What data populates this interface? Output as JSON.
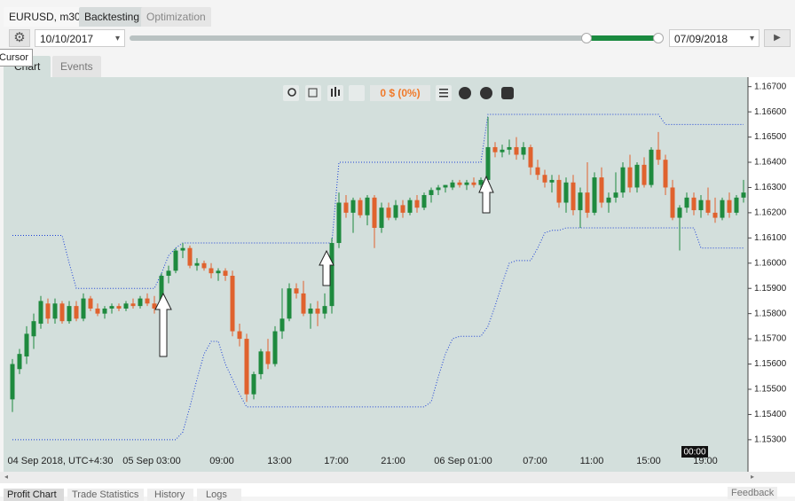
{
  "tabs": [
    "EURUSD, m30",
    "Backtesting",
    "Optimization"
  ],
  "tooltip": "Cursor",
  "start_date": "10/10/2017",
  "end_date": "07/09/2018",
  "view_tabs": [
    "Chart",
    "Events"
  ],
  "pnl": "0 $ (0%)",
  "crosshair_label": "00:00",
  "bottom_tabs": [
    "Profit Chart",
    "Trade Statistics",
    "History",
    "Logs"
  ],
  "feedback": "Feedback",
  "chart_data": {
    "type": "candlestick",
    "x_labels": [
      "04 Sep 2018, UTC+4:30",
      "05 Sep 03:00",
      "09:00",
      "13:00",
      "17:00",
      "21:00",
      "06 Sep 01:00",
      "07:00",
      "11:00",
      "15:00",
      "19:00"
    ],
    "up_color": "#1e8a3e",
    "down_color": "#e0622e",
    "ylim": [
      1.1518,
      1.1672
    ],
    "yticks": [
      {
        "value": 1.153,
        "label": "1.15300"
      },
      {
        "value": 1.154,
        "label": "1.15400"
      },
      {
        "value": 1.155,
        "label": "1.15500"
      },
      {
        "value": 1.156,
        "label": "1.15600"
      },
      {
        "value": 1.157,
        "label": "1.15700"
      },
      {
        "value": 1.158,
        "label": "1.15800"
      },
      {
        "value": 1.159,
        "label": "1.15900"
      },
      {
        "value": 1.16,
        "label": "1.16000"
      },
      {
        "value": 1.161,
        "label": "1.16100"
      },
      {
        "value": 1.162,
        "label": "1.16200"
      },
      {
        "value": 1.163,
        "label": "1.16300"
      },
      {
        "value": 1.164,
        "label": "1.16400"
      },
      {
        "value": 1.165,
        "label": "1.16500"
      },
      {
        "value": 1.166,
        "label": "1.16600"
      },
      {
        "value": 1.167,
        "label": "1.16700"
      }
    ],
    "candles": [
      [
        1.1546,
        1.1562,
        1.1541,
        1.156
      ],
      [
        1.1558,
        1.1566,
        1.1556,
        1.1564
      ],
      [
        1.1563,
        1.1575,
        1.156,
        1.1572
      ],
      [
        1.1571,
        1.158,
        1.1566,
        1.1577
      ],
      [
        1.1576,
        1.1587,
        1.1574,
        1.1585
      ],
      [
        1.1584,
        1.1586,
        1.1576,
        1.1578
      ],
      [
        1.1578,
        1.1586,
        1.1576,
        1.1584
      ],
      [
        1.1584,
        1.1585,
        1.1576,
        1.1577
      ],
      [
        1.1577,
        1.1585,
        1.1576,
        1.1583
      ],
      [
        1.1583,
        1.1585,
        1.1577,
        1.1578
      ],
      [
        1.1578,
        1.1588,
        1.1577,
        1.1586
      ],
      [
        1.1586,
        1.1587,
        1.1581,
        1.1582
      ],
      [
        1.1582,
        1.1584,
        1.1579,
        1.158
      ],
      [
        1.158,
        1.1583,
        1.1578,
        1.1582
      ],
      [
        1.1582,
        1.1584,
        1.158,
        1.1583
      ],
      [
        1.1583,
        1.1584,
        1.1581,
        1.1582
      ],
      [
        1.1582,
        1.1585,
        1.1581,
        1.1584
      ],
      [
        1.1584,
        1.1586,
        1.1582,
        1.1583
      ],
      [
        1.1583,
        1.1587,
        1.1582,
        1.1586
      ],
      [
        1.1586,
        1.1588,
        1.1583,
        1.1584
      ],
      [
        1.1584,
        1.1587,
        1.158,
        1.1582
      ],
      [
        1.1582,
        1.1596,
        1.1581,
        1.1595
      ],
      [
        1.1595,
        1.1599,
        1.1592,
        1.1597
      ],
      [
        1.1597,
        1.1606,
        1.1596,
        1.1605
      ],
      [
        1.1605,
        1.1608,
        1.1602,
        1.1606
      ],
      [
        1.1606,
        1.1607,
        1.1598,
        1.1599
      ],
      [
        1.1599,
        1.1602,
        1.1597,
        1.16
      ],
      [
        1.16,
        1.1601,
        1.1597,
        1.1598
      ],
      [
        1.1598,
        1.16,
        1.1594,
        1.1596
      ],
      [
        1.1596,
        1.1598,
        1.1593,
        1.1597
      ],
      [
        1.1597,
        1.1598,
        1.1593,
        1.1595
      ],
      [
        1.1595,
        1.1597,
        1.1571,
        1.1573
      ],
      [
        1.1573,
        1.1576,
        1.1567,
        1.157
      ],
      [
        1.157,
        1.1572,
        1.1545,
        1.1548
      ],
      [
        1.1548,
        1.1557,
        1.1546,
        1.1556
      ],
      [
        1.1556,
        1.1566,
        1.1554,
        1.1565
      ],
      [
        1.1565,
        1.157,
        1.1558,
        1.156
      ],
      [
        1.156,
        1.1575,
        1.1559,
        1.1573
      ],
      [
        1.1573,
        1.159,
        1.157,
        1.1578
      ],
      [
        1.1578,
        1.1592,
        1.1577,
        1.159
      ],
      [
        1.159,
        1.1592,
        1.1586,
        1.1588
      ],
      [
        1.1588,
        1.1593,
        1.1579,
        1.158
      ],
      [
        1.158,
        1.1584,
        1.1574,
        1.1582
      ],
      [
        1.1582,
        1.1585,
        1.1575,
        1.158
      ],
      [
        1.158,
        1.1588,
        1.1578,
        1.1583
      ],
      [
        1.1583,
        1.161,
        1.158,
        1.1608
      ],
      [
        1.1608,
        1.1628,
        1.1606,
        1.1624
      ],
      [
        1.1624,
        1.1627,
        1.1618,
        1.162
      ],
      [
        1.162,
        1.1626,
        1.1612,
        1.1625
      ],
      [
        1.1625,
        1.1626,
        1.1618,
        1.1619
      ],
      [
        1.1619,
        1.1627,
        1.1615,
        1.1626
      ],
      [
        1.1626,
        1.1627,
        1.1606,
        1.1614
      ],
      [
        1.1614,
        1.1624,
        1.1612,
        1.1622
      ],
      [
        1.1622,
        1.1624,
        1.1617,
        1.1618
      ],
      [
        1.1618,
        1.1625,
        1.1617,
        1.1623
      ],
      [
        1.1623,
        1.1625,
        1.1618,
        1.162
      ],
      [
        1.162,
        1.1626,
        1.1619,
        1.1625
      ],
      [
        1.1625,
        1.1627,
        1.162,
        1.1622
      ],
      [
        1.1622,
        1.1628,
        1.1621,
        1.1627
      ],
      [
        1.1627,
        1.163,
        1.1624,
        1.1629
      ],
      [
        1.1629,
        1.1631,
        1.1627,
        1.163
      ],
      [
        1.163,
        1.1631,
        1.1628,
        1.1631
      ],
      [
        1.163,
        1.1633,
        1.1629,
        1.1632
      ],
      [
        1.1632,
        1.1633,
        1.163,
        1.1631
      ],
      [
        1.1631,
        1.1633,
        1.1629,
        1.1632
      ],
      [
        1.1632,
        1.1634,
        1.163,
        1.1631
      ],
      [
        1.1631,
        1.1634,
        1.1629,
        1.1633
      ],
      [
        1.1633,
        1.1658,
        1.1632,
        1.1646
      ],
      [
        1.1646,
        1.1648,
        1.1642,
        1.1644
      ],
      [
        1.1644,
        1.1647,
        1.1642,
        1.1645
      ],
      [
        1.1645,
        1.1649,
        1.1643,
        1.1646
      ],
      [
        1.1646,
        1.165,
        1.1641,
        1.1643
      ],
      [
        1.1643,
        1.1648,
        1.1641,
        1.1646
      ],
      [
        1.1646,
        1.1647,
        1.1635,
        1.1638
      ],
      [
        1.1638,
        1.1641,
        1.1633,
        1.1635
      ],
      [
        1.1635,
        1.1637,
        1.163,
        1.1632
      ],
      [
        1.1632,
        1.1635,
        1.1628,
        1.1633
      ],
      [
        1.1633,
        1.1635,
        1.1622,
        1.1624
      ],
      [
        1.1624,
        1.1634,
        1.162,
        1.1632
      ],
      [
        1.1632,
        1.1635,
        1.1619,
        1.1621
      ],
      [
        1.1621,
        1.163,
        1.1614,
        1.1628
      ],
      [
        1.1628,
        1.164,
        1.1618,
        1.162
      ],
      [
        1.162,
        1.1636,
        1.1619,
        1.1634
      ],
      [
        1.1634,
        1.1638,
        1.1622,
        1.1624
      ],
      [
        1.1624,
        1.1628,
        1.162,
        1.1626
      ],
      [
        1.1626,
        1.1636,
        1.1624,
        1.1628
      ],
      [
        1.1628,
        1.164,
        1.1626,
        1.1638
      ],
      [
        1.1638,
        1.1643,
        1.1628,
        1.163
      ],
      [
        1.163,
        1.164,
        1.1628,
        1.1639
      ],
      [
        1.1639,
        1.1642,
        1.163,
        1.1631
      ],
      [
        1.1631,
        1.1646,
        1.163,
        1.1645
      ],
      [
        1.1645,
        1.1652,
        1.1639,
        1.1641
      ],
      [
        1.1641,
        1.1643,
        1.1627,
        1.163
      ],
      [
        1.163,
        1.1633,
        1.1617,
        1.1618
      ],
      [
        1.1618,
        1.1623,
        1.1605,
        1.1622
      ],
      [
        1.1622,
        1.1628,
        1.162,
        1.1626
      ],
      [
        1.1626,
        1.1628,
        1.1619,
        1.1621
      ],
      [
        1.1621,
        1.1627,
        1.1618,
        1.1625
      ],
      [
        1.1625,
        1.163,
        1.1619,
        1.162
      ],
      [
        1.162,
        1.1626,
        1.1616,
        1.1618
      ],
      [
        1.1618,
        1.1626,
        1.1617,
        1.1625
      ],
      [
        1.1625,
        1.1628,
        1.1618,
        1.162
      ],
      [
        1.162,
        1.1627,
        1.1619,
        1.1626
      ],
      [
        1.1626,
        1.1633,
        1.1624,
        1.1628
      ]
    ],
    "channel": {
      "color": "#1a3fd6",
      "upper": [
        1.1611,
        1.1611,
        1.1611,
        1.1611,
        1.1611,
        1.1611,
        1.1611,
        1.1611,
        1.16,
        1.159,
        1.159,
        1.159,
        1.159,
        1.159,
        1.159,
        1.159,
        1.159,
        1.159,
        1.159,
        1.159,
        1.159,
        1.1596,
        1.1603,
        1.1606,
        1.1608,
        1.1608,
        1.1608,
        1.1608,
        1.1608,
        1.1608,
        1.1608,
        1.1608,
        1.1608,
        1.1608,
        1.1608,
        1.1608,
        1.1608,
        1.1608,
        1.1608,
        1.1608,
        1.1608,
        1.1608,
        1.1608,
        1.1608,
        1.1608,
        1.1608,
        1.164,
        1.164,
        1.164,
        1.164,
        1.164,
        1.164,
        1.164,
        1.164,
        1.164,
        1.164,
        1.164,
        1.164,
        1.164,
        1.164,
        1.164,
        1.164,
        1.164,
        1.164,
        1.164,
        1.164,
        1.164,
        1.1659,
        1.1659,
        1.1659,
        1.1659,
        1.1659,
        1.1659,
        1.1659,
        1.1659,
        1.1659,
        1.1659,
        1.1659,
        1.1659,
        1.1659,
        1.1659,
        1.1659,
        1.1659,
        1.1659,
        1.1659,
        1.1659,
        1.1659,
        1.1659,
        1.1659,
        1.1659,
        1.1659,
        1.1659,
        1.1655,
        1.1655,
        1.1655,
        1.1655,
        1.1655,
        1.1655,
        1.1655,
        1.1655,
        1.1655,
        1.1655,
        1.1655,
        1.1655
      ],
      "lower": [
        1.153,
        1.153,
        1.153,
        1.153,
        1.153,
        1.153,
        1.153,
        1.153,
        1.153,
        1.153,
        1.153,
        1.153,
        1.153,
        1.153,
        1.153,
        1.153,
        1.153,
        1.153,
        1.153,
        1.153,
        1.153,
        1.153,
        1.153,
        1.153,
        1.1533,
        1.1543,
        1.1554,
        1.1564,
        1.1569,
        1.1569,
        1.156,
        1.1554,
        1.1548,
        1.1543,
        1.1543,
        1.1543,
        1.1543,
        1.1543,
        1.1543,
        1.1543,
        1.1543,
        1.1543,
        1.1543,
        1.1543,
        1.1543,
        1.1543,
        1.1543,
        1.1543,
        1.1543,
        1.1543,
        1.1543,
        1.1543,
        1.1543,
        1.1543,
        1.1543,
        1.1543,
        1.1543,
        1.1543,
        1.1543,
        1.1545,
        1.1555,
        1.1564,
        1.157,
        1.1571,
        1.1571,
        1.1571,
        1.1571,
        1.1575,
        1.1583,
        1.1592,
        1.16,
        1.1601,
        1.1601,
        1.1601,
        1.1606,
        1.1612,
        1.1613,
        1.1613,
        1.1614,
        1.1614,
        1.1614,
        1.1614,
        1.1614,
        1.1614,
        1.1614,
        1.1614,
        1.1614,
        1.1614,
        1.1614,
        1.1614,
        1.1614,
        1.1614,
        1.1614,
        1.1614,
        1.1614,
        1.1614,
        1.1614,
        1.1606,
        1.1606,
        1.1606,
        1.1606,
        1.1606,
        1.1606,
        1.1606
      ]
    }
  }
}
